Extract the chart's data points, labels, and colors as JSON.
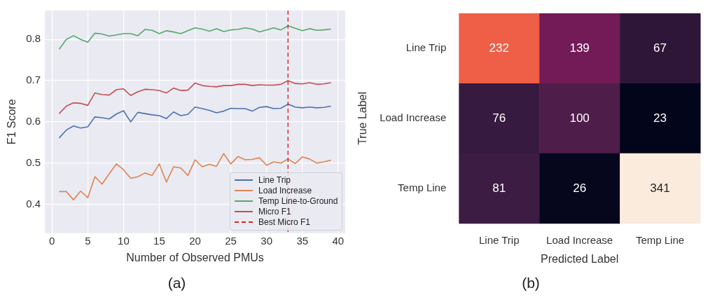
{
  "chart_data": [
    {
      "type": "line",
      "xlabel": "Number of Observed PMUs",
      "ylabel": "F1 Score",
      "annotations": [
        "(a)"
      ],
      "x": [
        1,
        2,
        3,
        4,
        5,
        6,
        7,
        8,
        9,
        10,
        11,
        12,
        13,
        14,
        15,
        16,
        17,
        18,
        19,
        20,
        21,
        22,
        23,
        24,
        25,
        26,
        27,
        28,
        29,
        30,
        31,
        32,
        33,
        34,
        35,
        36,
        37,
        38,
        39
      ],
      "series": [
        {
          "name": "Line Trip",
          "color": "#4c72b0",
          "values": [
            0.561,
            0.58,
            0.59,
            0.585,
            0.588,
            0.612,
            0.61,
            0.607,
            0.619,
            0.627,
            0.6,
            0.623,
            0.62,
            0.617,
            0.615,
            0.608,
            0.624,
            0.615,
            0.618,
            0.636,
            0.632,
            0.628,
            0.622,
            0.626,
            0.633,
            0.632,
            0.632,
            0.626,
            0.635,
            0.637,
            0.632,
            0.633,
            0.643,
            0.636,
            0.634,
            0.636,
            0.634,
            0.635,
            0.638
          ]
        },
        {
          "name": "Load Increase",
          "color": "#dd8452",
          "values": [
            0.431,
            0.431,
            0.411,
            0.432,
            0.416,
            0.467,
            0.449,
            0.474,
            0.498,
            0.484,
            0.463,
            0.467,
            0.476,
            0.47,
            0.498,
            0.454,
            0.491,
            0.488,
            0.47,
            0.508,
            0.491,
            0.497,
            0.492,
            0.523,
            0.498,
            0.516,
            0.508,
            0.509,
            0.513,
            0.495,
            0.503,
            0.5,
            0.51,
            0.499,
            0.515,
            0.51,
            0.5,
            0.503,
            0.507
          ]
        },
        {
          "name": "Temp Line-to-Ground",
          "color": "#55a868",
          "values": [
            0.776,
            0.8,
            0.809,
            0.8,
            0.793,
            0.815,
            0.813,
            0.808,
            0.811,
            0.814,
            0.814,
            0.809,
            0.824,
            0.822,
            0.814,
            0.821,
            0.818,
            0.814,
            0.821,
            0.828,
            0.825,
            0.82,
            0.826,
            0.819,
            0.823,
            0.824,
            0.828,
            0.825,
            0.818,
            0.823,
            0.828,
            0.823,
            0.833,
            0.827,
            0.821,
            0.826,
            0.822,
            0.823,
            0.825
          ]
        },
        {
          "name": "Micro F1",
          "color": "#c44e52",
          "values": [
            0.62,
            0.638,
            0.646,
            0.645,
            0.64,
            0.67,
            0.666,
            0.665,
            0.678,
            0.68,
            0.664,
            0.673,
            0.679,
            0.678,
            0.676,
            0.67,
            0.682,
            0.676,
            0.677,
            0.694,
            0.688,
            0.686,
            0.685,
            0.688,
            0.688,
            0.691,
            0.691,
            0.688,
            0.69,
            0.689,
            0.689,
            0.691,
            0.7,
            0.693,
            0.692,
            0.695,
            0.691,
            0.692,
            0.695
          ]
        }
      ],
      "ref_lines": [
        {
          "axis": "x",
          "value": 33,
          "label": "Best Micro F1",
          "color": "#d62728",
          "line_style": "dashed"
        }
      ],
      "xlim": [
        -1,
        41
      ],
      "xticks": [
        0,
        5,
        10,
        15,
        20,
        25,
        30,
        35,
        40
      ],
      "ylim": [
        0.33,
        0.87
      ],
      "yticks": [
        0.4,
        0.5,
        0.6,
        0.7,
        0.8
      ],
      "grid": true,
      "legend": "bottom right",
      "marker": "none",
      "line_style": "solid"
    },
    {
      "type": "heatmap",
      "xlabel": "Predicted Label",
      "ylabel": "True Label",
      "annotations": [
        "(b)"
      ],
      "categories": [
        "Line Trip",
        "Load Increase",
        "Temp Line"
      ],
      "y_categories": [
        "Line Trip",
        "Load Increase",
        "Temp Line"
      ],
      "cells": [
        [
          232,
          139,
          67
        ],
        [
          76,
          100,
          23
        ],
        [
          81,
          26,
          341
        ]
      ],
      "data_labels": true
    }
  ]
}
